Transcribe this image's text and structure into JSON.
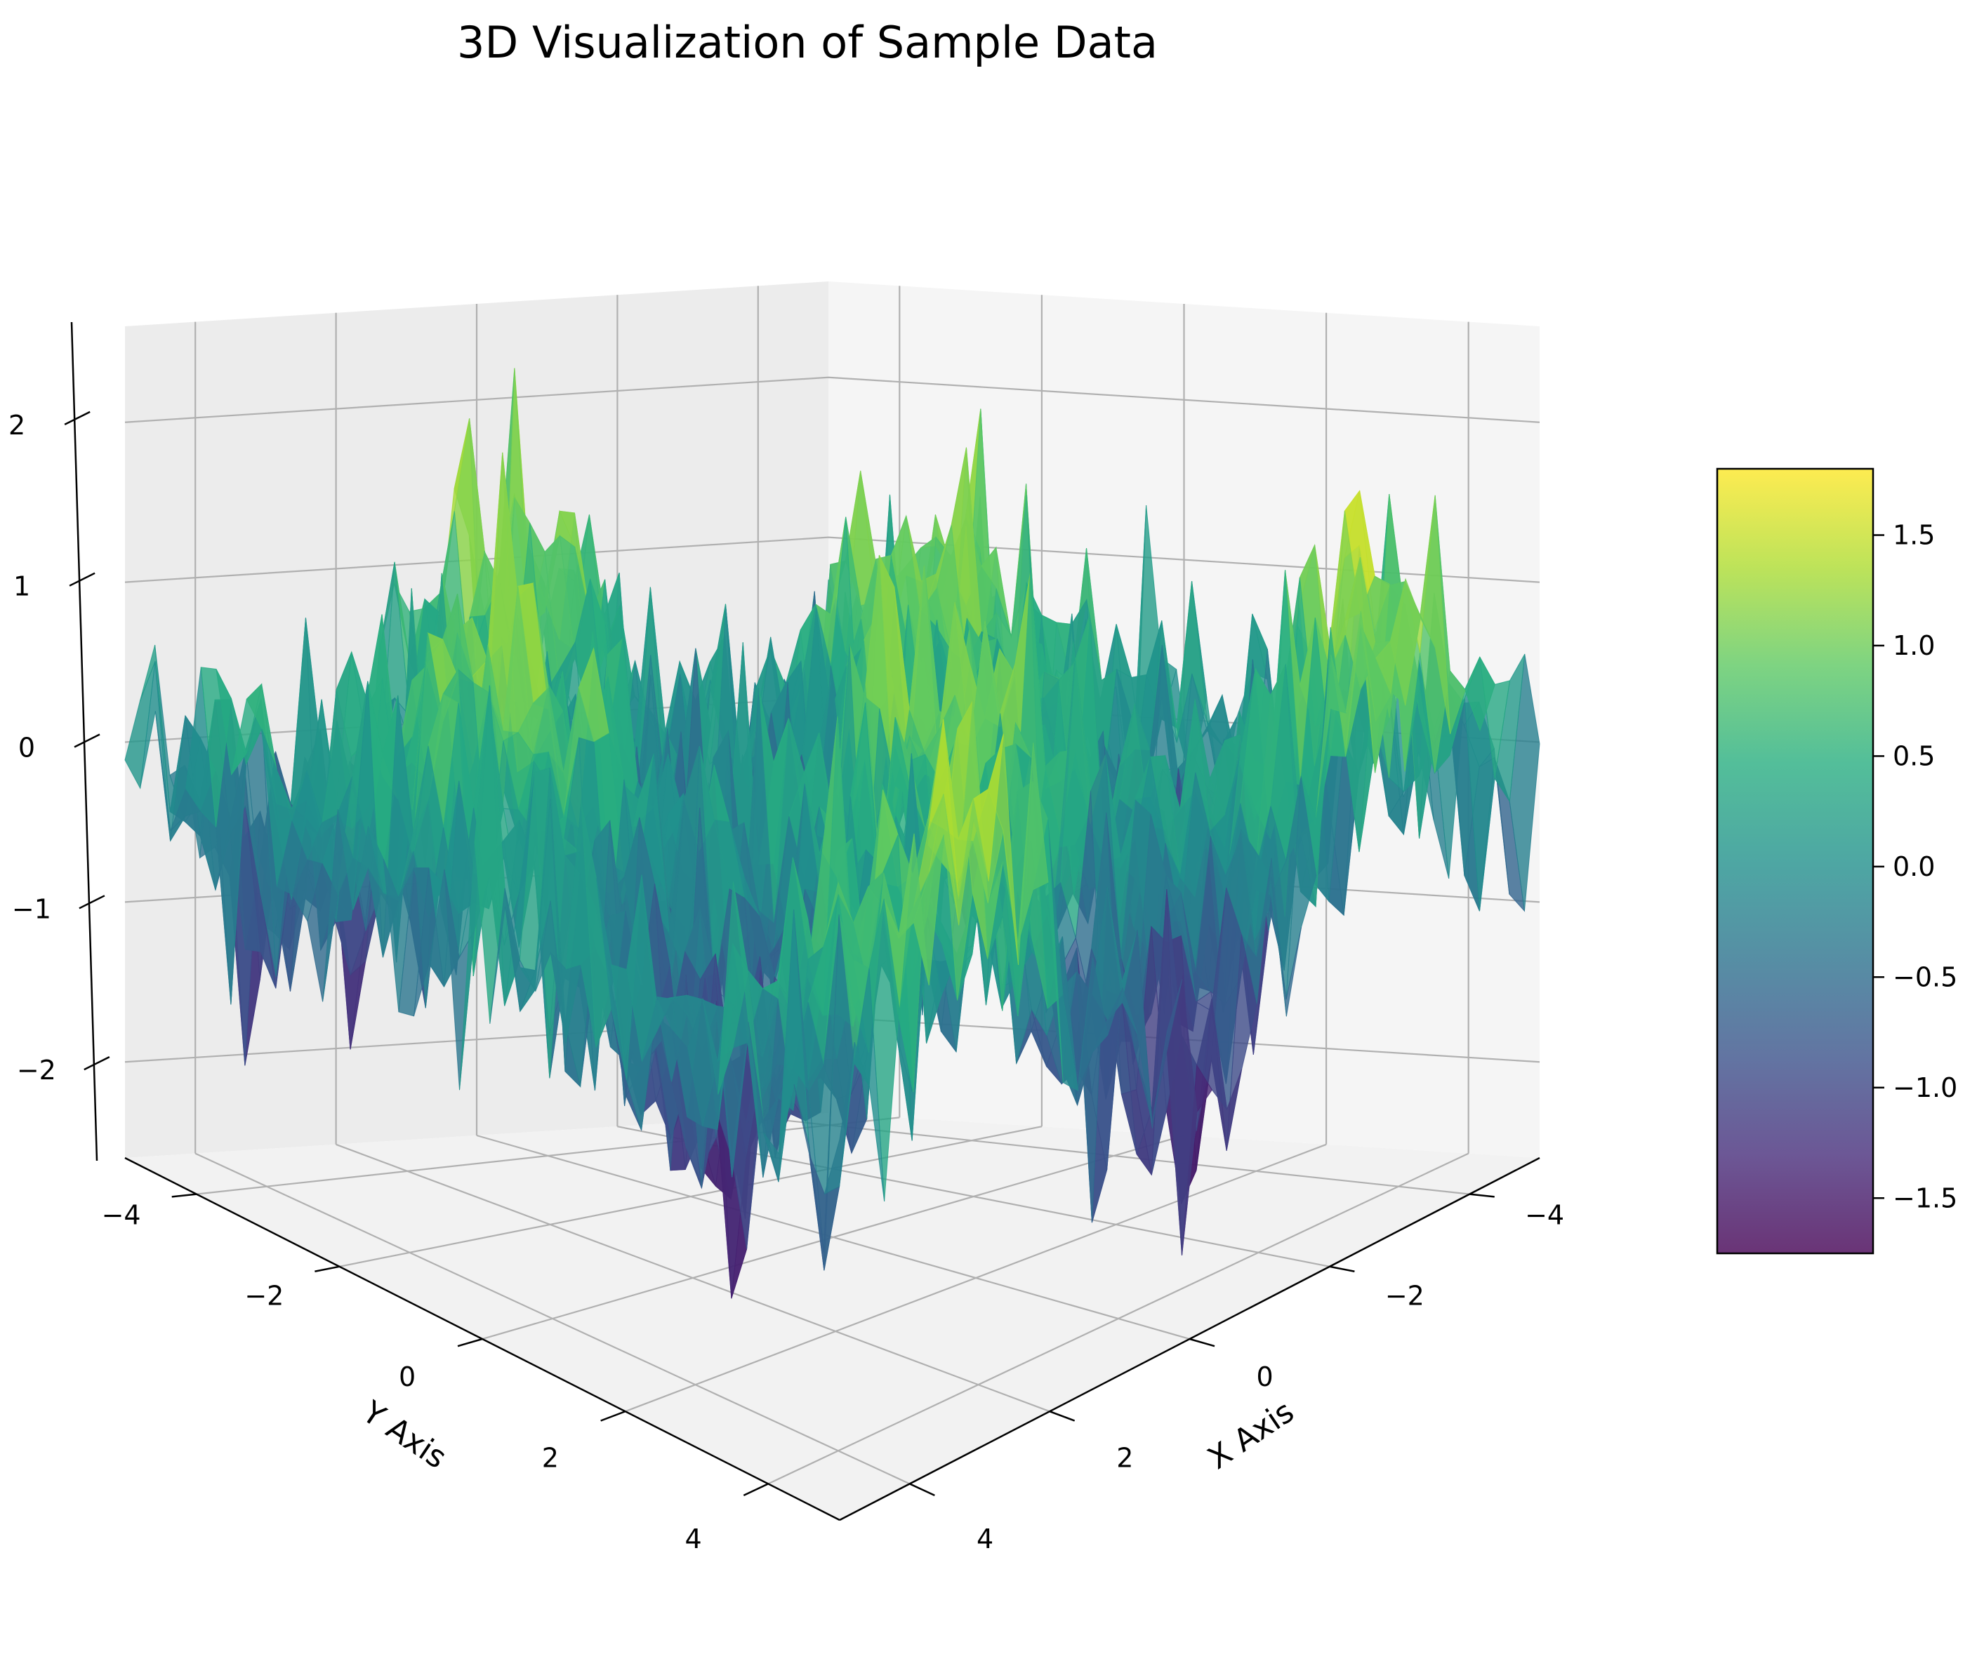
{
  "chart_data": {
    "type": "surface3d",
    "title": "3D Visualization of Sample Data",
    "xlabel": "X Axis",
    "ylabel": "Y Axis",
    "zlabel": "",
    "xlim": [
      -5,
      5
    ],
    "ylim": [
      -5,
      5
    ],
    "zlim": [
      -2.6,
      2.6
    ],
    "x_ticks": [
      -4,
      -2,
      0,
      2,
      4
    ],
    "y_ticks": [
      -4,
      -2,
      0,
      2,
      4
    ],
    "z_ticks": [
      -2,
      -1,
      0,
      1,
      2
    ],
    "colormap": "viridis",
    "alpha": 0.8,
    "grid": true,
    "surface": {
      "x_range": [
        -5,
        5
      ],
      "y_range": [
        -5,
        5
      ],
      "grid_size": 48,
      "function": "sin(x)*cos(y) + noise",
      "noise_sd": 0.5
    },
    "colorbar": {
      "range": [
        -1.75,
        1.8
      ],
      "ticks": [
        -1.5,
        -1.0,
        -0.5,
        0.0,
        0.5,
        1.0,
        1.5
      ],
      "tick_labels": [
        "−1.5",
        "−1.0",
        "−0.5",
        "0.0",
        "0.5",
        "1.0",
        "1.5"
      ]
    }
  },
  "colors": {
    "pane_left": "#ececec",
    "pane_right": "#f5f5f5",
    "pane_floor": "#f2f2f2",
    "grid": "#b0b0b0",
    "axis": "#000000"
  }
}
